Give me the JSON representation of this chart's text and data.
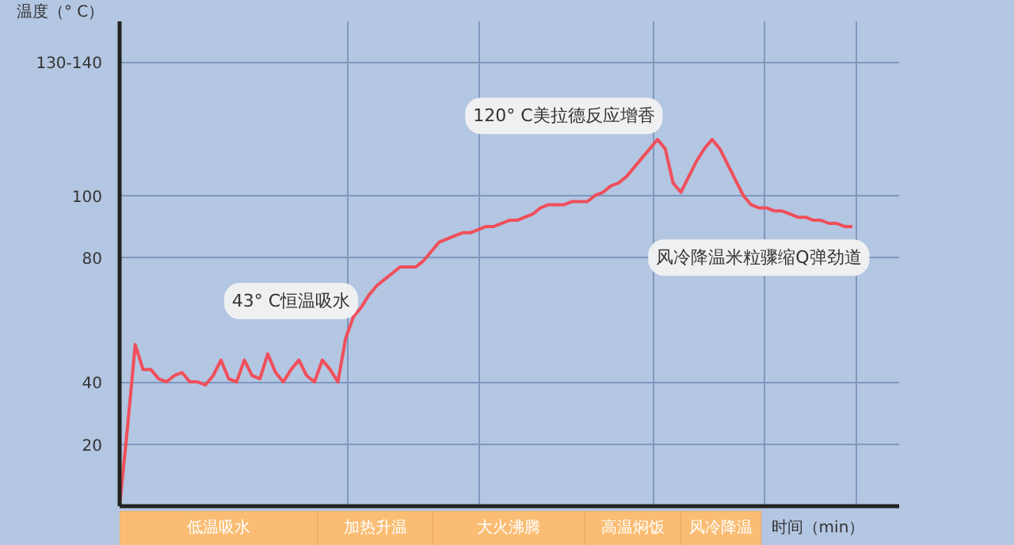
{
  "chart_data": {
    "type": "line",
    "ylabel": "温度（° C）",
    "xlabel": "时间（min）",
    "categories": [
      null,
      null,
      null,
      null,
      null,
      null,
      null,
      null,
      null,
      null,
      null,
      null,
      null,
      null,
      null,
      null,
      null,
      null,
      null,
      null,
      null,
      null,
      null,
      null,
      null,
      null,
      null,
      null,
      null,
      null,
      null,
      null,
      null,
      null,
      null,
      null,
      null,
      null,
      null,
      null,
      null,
      null,
      null,
      null,
      null,
      null,
      null,
      null,
      null,
      null,
      null,
      null,
      null,
      null,
      null,
      null,
      null,
      null,
      null,
      null,
      null,
      null,
      null,
      null,
      null,
      null,
      null,
      null,
      null,
      null,
      null,
      null,
      null,
      null,
      null,
      null,
      null,
      null,
      null,
      null,
      null,
      null,
      null,
      null,
      null,
      null,
      null,
      null,
      null,
      null,
      null,
      null,
      null,
      null,
      null
    ],
    "series": [
      {
        "color": "#f04f5a",
        "values": [
          0,
          25,
          52,
          44,
          44,
          41,
          40,
          42,
          43,
          40,
          40,
          39,
          42,
          47,
          41,
          40,
          47,
          42,
          41,
          49,
          43,
          40,
          44,
          47,
          42,
          40,
          47,
          44,
          40,
          54,
          61,
          64,
          68,
          71,
          73,
          75,
          77,
          77,
          77,
          79,
          82,
          85,
          86,
          87,
          88,
          88,
          89,
          90,
          90,
          91,
          92,
          92,
          93,
          94,
          96,
          97,
          97,
          97,
          98,
          98,
          98,
          100,
          101,
          103,
          104,
          106,
          109,
          112,
          115,
          118,
          115,
          104,
          101,
          106,
          111,
          115,
          118,
          115,
          110,
          105,
          100,
          97,
          96,
          96,
          95,
          95,
          94,
          93,
          93,
          92,
          92,
          91,
          91,
          90,
          90
        ]
      }
    ],
    "ylim": [
      0,
      156
    ],
    "yticks": [
      20,
      40,
      80,
      100,
      {
        "value": 143,
        "label": "130-140"
      }
    ],
    "tick_labels": "y",
    "grid": true,
    "marker": "none",
    "line_style": "solid",
    "annotations": [
      "43° C恒温吸水",
      "120° C美拉德反应增香",
      "风冷降温米粒骤缩Q弹劲道",
      "低温吸水",
      "加热升温",
      "大火沸腾",
      "高温焖饭",
      "风冷降温"
    ]
  }
}
